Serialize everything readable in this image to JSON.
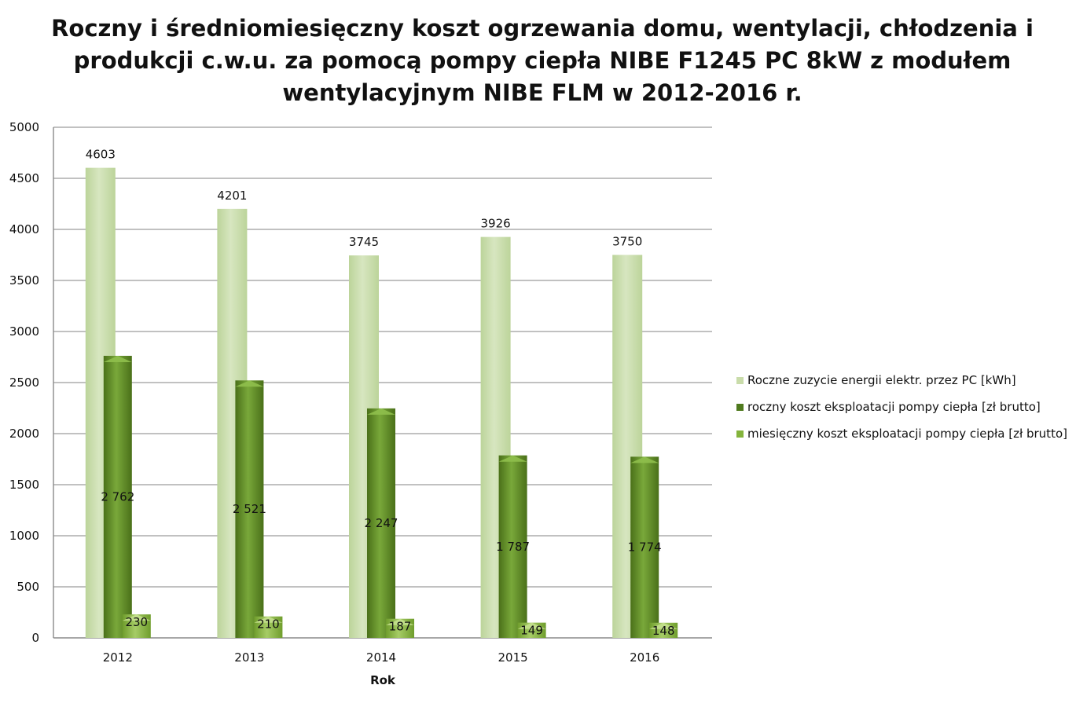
{
  "chart_data": {
    "type": "bar",
    "title": [
      "Roczny i średniomiesięczny koszt ogrzewania domu, wentylacji, chłodzenia i",
      "produkcji c.w.u. za pomocą pompy ciepła NIBE F1245 PC 8kW z modułem",
      "wentylacyjnym NIBE FLM w 2012-2016  r."
    ],
    "xlabel": "Rok",
    "ylabel": "",
    "categories": [
      "2012",
      "2013",
      "2014",
      "2015",
      "2016"
    ],
    "ylim": [
      0,
      5000
    ],
    "yticks": [
      0,
      500,
      1000,
      1500,
      2000,
      2500,
      3000,
      3500,
      4000,
      4500,
      5000
    ],
    "grid": true,
    "legend_position": "right",
    "series": [
      {
        "name": "Roczne zuzycie energii elektr. przez PC [kWh]",
        "values": [
          4603,
          4201,
          3745,
          3926,
          3750
        ],
        "labels": [
          "4603",
          "4201",
          "3745",
          "3926",
          "3750"
        ],
        "color": "#c9dcaa"
      },
      {
        "name": "roczny koszt eksploatacji pompy ciepła [zł brutto]",
        "values": [
          2762,
          2521,
          2247,
          1787,
          1774
        ],
        "labels": [
          "2 762",
          "2 521",
          "2 247",
          "1 787",
          "1 774"
        ],
        "color": "#5e8a27"
      },
      {
        "name": "miesięczny koszt eksploatacji pompy ciepła [zł brutto]",
        "values": [
          230,
          210,
          187,
          149,
          148
        ],
        "labels": [
          "230",
          "210",
          "187",
          "149",
          "148"
        ],
        "color": "#84b43c"
      }
    ]
  }
}
